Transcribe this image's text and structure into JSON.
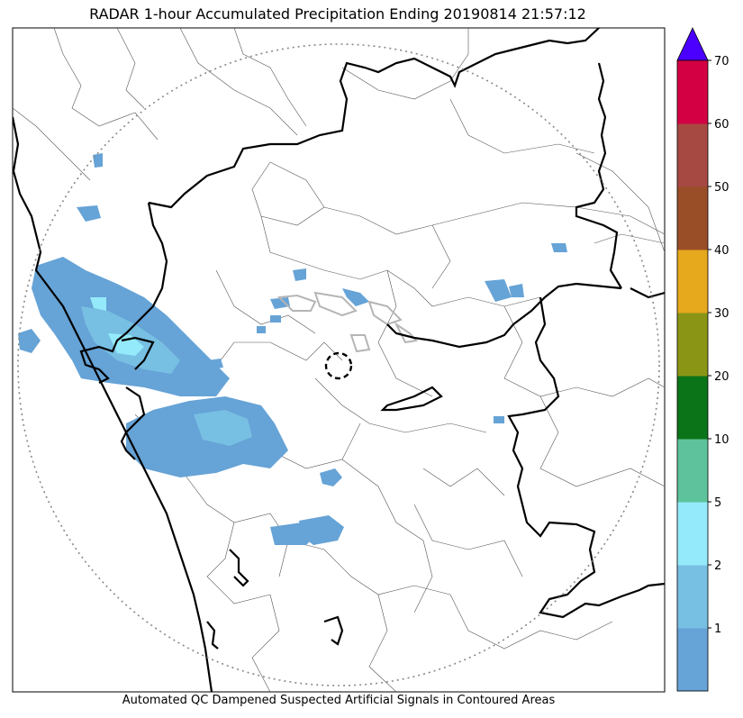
{
  "title": "RADAR 1-hour Accumulated Precipitation Ending 20190814 21:57:12",
  "caption": "Automated QC Dampened Suspected Artificial Signals in Contoured Areas",
  "colorbar": {
    "extend_color": "#4b00ff",
    "segments": [
      {
        "label": "",
        "color": "#66a3d6"
      },
      {
        "label": "1",
        "color": "#77bfe3"
      },
      {
        "label": "2",
        "color": "#94eafa"
      },
      {
        "label": "5",
        "color": "#5ec39c"
      },
      {
        "label": "10",
        "color": "#0c7418"
      },
      {
        "label": "20",
        "color": "#8a9516"
      },
      {
        "label": "30",
        "color": "#e6a81c"
      },
      {
        "label": "40",
        "color": "#9a4e27"
      },
      {
        "label": "50",
        "color": "#a74943"
      },
      {
        "label": "60",
        "color": "#d30044"
      }
    ],
    "top_label": "70"
  }
}
